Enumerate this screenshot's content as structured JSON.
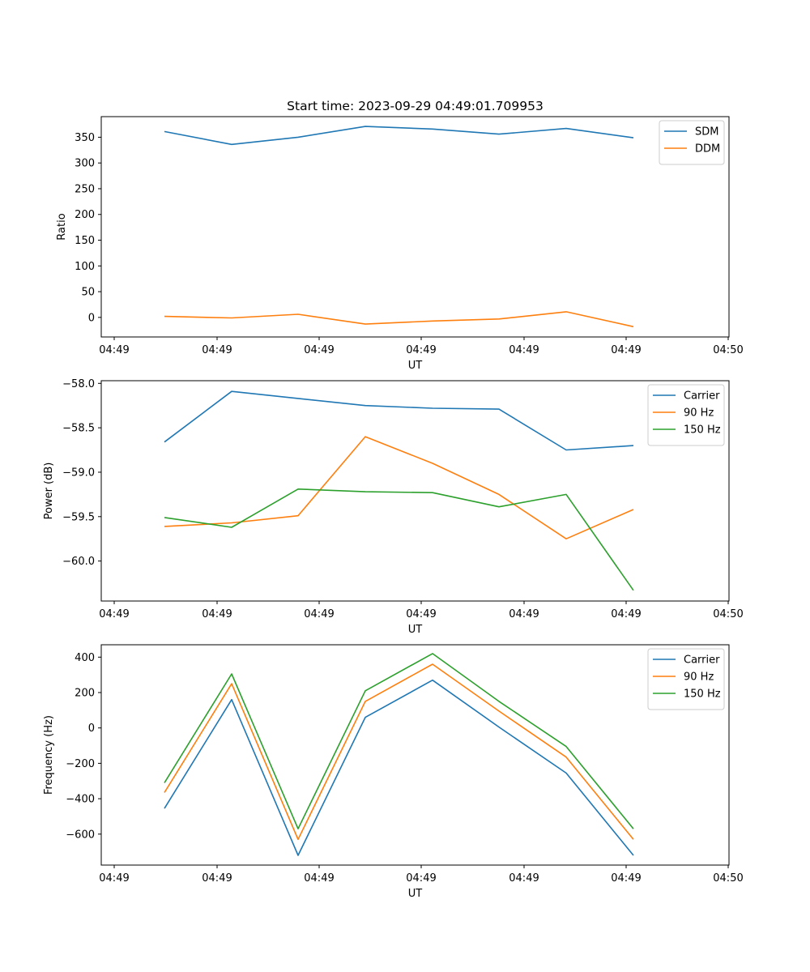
{
  "figure_title": "Start time: 2023-09-29 04:49:01.709953",
  "chart_data": [
    {
      "type": "line",
      "title": "Start time: 2023-09-29 04:49:01.709953",
      "xlabel": "UT",
      "ylabel": "Ratio",
      "x_tick_labels": [
        "04:49",
        "04:49",
        "04:49",
        "04:49",
        "04:49",
        "04:49",
        "04:50"
      ],
      "y_ticks": [
        0,
        50,
        100,
        150,
        200,
        250,
        300,
        350
      ],
      "ylim": [
        -38,
        390
      ],
      "legend_position": "top-right",
      "series": [
        {
          "name": "SDM",
          "color": "#1f77b4",
          "values": [
            361,
            336,
            350,
            371,
            366,
            356,
            367,
            349
          ]
        },
        {
          "name": "DDM",
          "color": "#ff7f0e",
          "values": [
            2,
            -1,
            6,
            -13,
            -7,
            -3,
            11,
            -18
          ]
        }
      ]
    },
    {
      "type": "line",
      "title": "",
      "xlabel": "UT",
      "ylabel": "Power (dB)",
      "x_tick_labels": [
        "04:49",
        "04:49",
        "04:49",
        "04:49",
        "04:49",
        "04:49",
        "04:50"
      ],
      "y_ticks": [
        -60.0,
        -59.5,
        -59.0,
        -58.5,
        -58.0
      ],
      "y_tick_labels": [
        "−60.0",
        "−59.5",
        "−59.0",
        "−58.5",
        "−58.0"
      ],
      "ylim": [
        -60.45,
        -57.97
      ],
      "legend_position": "top-right",
      "series": [
        {
          "name": "Carrier",
          "color": "#1f77b4",
          "values": [
            -58.66,
            -58.09,
            -58.17,
            -58.25,
            -58.28,
            -58.29,
            -58.75,
            -58.7
          ]
        },
        {
          "name": "90 Hz",
          "color": "#ff7f0e",
          "values": [
            -59.61,
            -59.57,
            -59.49,
            -58.6,
            -58.9,
            -59.25,
            -59.75,
            -59.42
          ]
        },
        {
          "name": "150 Hz",
          "color": "#2ca02c",
          "values": [
            -59.51,
            -59.62,
            -59.19,
            -59.22,
            -59.23,
            -59.39,
            -59.25,
            -60.33
          ]
        }
      ]
    },
    {
      "type": "line",
      "title": "",
      "xlabel": "UT",
      "ylabel": "Frequency (Hz)",
      "x_tick_labels": [
        "04:49",
        "04:49",
        "04:49",
        "04:49",
        "04:49",
        "04:49",
        "04:50"
      ],
      "y_ticks": [
        -600,
        -400,
        -200,
        0,
        200,
        400
      ],
      "y_tick_labels": [
        "−600",
        "−400",
        "−200",
        "0",
        "200",
        "400"
      ],
      "ylim": [
        -775,
        470
      ],
      "legend_position": "top-right",
      "series": [
        {
          "name": "Carrier",
          "color": "#1f77b4",
          "values": [
            -455,
            160,
            -720,
            60,
            270,
            5,
            -255,
            -720
          ]
        },
        {
          "name": "90 Hz",
          "color": "#ff7f0e",
          "values": [
            -365,
            250,
            -630,
            150,
            360,
            95,
            -165,
            -630
          ]
        },
        {
          "name": "150 Hz",
          "color": "#2ca02c",
          "values": [
            -310,
            305,
            -570,
            210,
            420,
            150,
            -105,
            -570
          ]
        }
      ]
    }
  ]
}
